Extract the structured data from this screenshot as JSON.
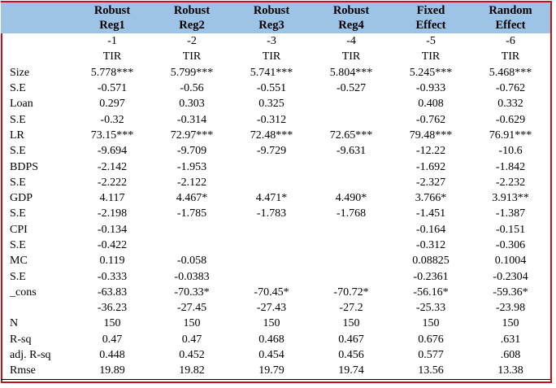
{
  "columns": [
    {
      "line1": "Robust",
      "line2": "Reg1",
      "num": "-1",
      "dep": "TIR"
    },
    {
      "line1": "Robust",
      "line2": "Reg2",
      "num": "-2",
      "dep": "TIR"
    },
    {
      "line1": "Robust",
      "line2": "Reg3",
      "num": "-3",
      "dep": "TIR"
    },
    {
      "line1": "Robust",
      "line2": "Reg4",
      "num": "-4",
      "dep": "TIR"
    },
    {
      "line1": "Fixed",
      "line2": "Effect",
      "num": "-5",
      "dep": "TIR"
    },
    {
      "line1": "Random",
      "line2": "Effect",
      "num": "-6",
      "dep": "TIR"
    }
  ],
  "rows": [
    {
      "label": "Size",
      "values": [
        "5.778***",
        "5.799***",
        "5.741***",
        "5.804***",
        "5.245***",
        "5.468***"
      ]
    },
    {
      "label": "S.E",
      "values": [
        "-0.571",
        "-0.56",
        "-0.551",
        "-0.527",
        "-0.933",
        "-0.762"
      ]
    },
    {
      "label": "Loan",
      "values": [
        "0.297",
        "0.303",
        "0.325",
        "",
        "0.408",
        "0.332"
      ]
    },
    {
      "label": "S.E",
      "values": [
        "-0.32",
        "-0.314",
        "-0.312",
        "",
        "-0.762",
        "-0.629"
      ]
    },
    {
      "label": "LR",
      "values": [
        "73.15***",
        "72.97***",
        "72.48***",
        "72.65***",
        "79.48***",
        "76.91***"
      ]
    },
    {
      "label": "S.E",
      "values": [
        "-9.694",
        "-9.709",
        "-9.729",
        "-9.631",
        "-12.22",
        "-10.6"
      ]
    },
    {
      "label": "BDPS",
      "values": [
        "-2.142",
        "-1.953",
        "",
        "",
        "-1.692",
        "-1.842"
      ]
    },
    {
      "label": "S.E",
      "values": [
        "-2.222",
        "-2.122",
        "",
        "",
        "-2.327",
        "-2.232"
      ]
    },
    {
      "label": "GDP",
      "values": [
        "4.117",
        "4.467*",
        "4.471*",
        "4.490*",
        "3.766*",
        "3.913**"
      ]
    },
    {
      "label": "S.E",
      "values": [
        "-2.198",
        "-1.785",
        "-1.783",
        "-1.768",
        "-1.451",
        "-1.387"
      ]
    },
    {
      "label": "CPI",
      "values": [
        "-0.134",
        "",
        "",
        "",
        "-0.164",
        "-0.151"
      ]
    },
    {
      "label": "S.E",
      "values": [
        "-0.422",
        "",
        "",
        "",
        "-0.312",
        "-0.306"
      ]
    },
    {
      "label": "MC",
      "values": [
        "0.119",
        "-0.058",
        "",
        "",
        "0.08825",
        "0.1004"
      ]
    },
    {
      "label": "S.E",
      "values": [
        "-0.333",
        "-0.0383",
        "",
        "",
        "-0.2361",
        "-0.2304"
      ]
    },
    {
      "label": "_cons",
      "values": [
        "-63.83",
        "-70.33*",
        "-70.45*",
        "-70.72*",
        "-56.16*",
        "-59.36*"
      ]
    },
    {
      "label": "",
      "values": [
        "-36.23",
        "-27.45",
        "-27.43",
        "-27.2",
        "-25.33",
        "-23.98"
      ]
    },
    {
      "label": "N",
      "values": [
        "150",
        "150",
        "150",
        "150",
        "150",
        "150"
      ]
    },
    {
      "label": "R-sq",
      "values": [
        "0.47",
        "0.47",
        "0.468",
        "0.467",
        "0.676",
        ".631"
      ]
    },
    {
      "label": "adj. R-sq",
      "values": [
        "0.448",
        "0.452",
        "0.454",
        "0.456",
        "0.577",
        ".608"
      ]
    },
    {
      "label": "Rmse",
      "values": [
        "19.89",
        "19.82",
        "19.79",
        "19.74",
        "13.56",
        "13.38"
      ]
    }
  ],
  "colors": {
    "header_bg": "#9dc3e6",
    "frame": "#c3111a"
  }
}
